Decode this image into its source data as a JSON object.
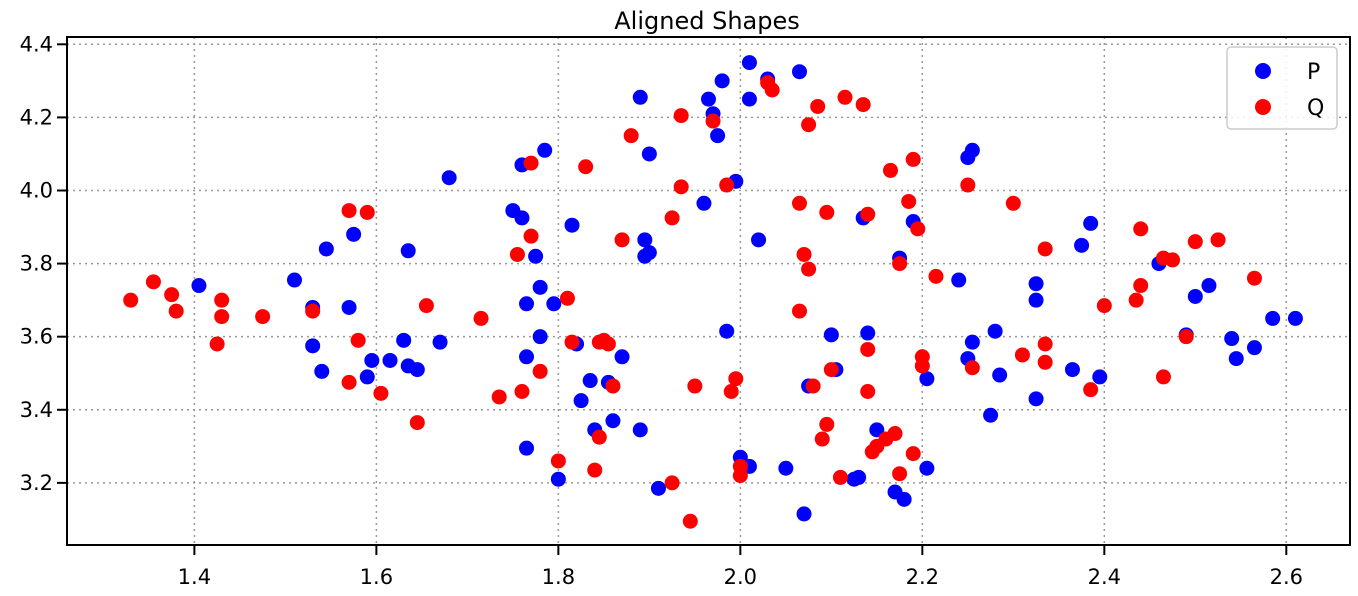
{
  "chart_data": {
    "type": "scatter",
    "title": "Aligned Shapes",
    "xlabel": "",
    "ylabel": "",
    "xlim": [
      1.26,
      2.67
    ],
    "ylim": [
      3.03,
      4.42
    ],
    "xticks": [
      "1.4",
      "1.6",
      "1.8",
      "2.0",
      "2.2",
      "2.4",
      "2.6"
    ],
    "yticks": [
      "3.2",
      "3.4",
      "3.6",
      "3.8",
      "4.0",
      "4.2",
      "4.4"
    ],
    "grid": true,
    "legend": "top-right",
    "series": [
      {
        "name": "P",
        "color": "#0000ff",
        "points": [
          [
            1.405,
            3.74
          ],
          [
            1.51,
            3.755
          ],
          [
            1.53,
            3.68
          ],
          [
            1.545,
            3.84
          ],
          [
            1.57,
            3.68
          ],
          [
            1.575,
            3.88
          ],
          [
            1.53,
            3.575
          ],
          [
            1.54,
            3.505
          ],
          [
            1.59,
            3.49
          ],
          [
            1.595,
            3.535
          ],
          [
            1.615,
            3.535
          ],
          [
            1.63,
            3.59
          ],
          [
            1.635,
            3.835
          ],
          [
            1.635,
            3.52
          ],
          [
            1.645,
            3.51
          ],
          [
            1.67,
            3.585
          ],
          [
            1.68,
            4.035
          ],
          [
            1.75,
            3.945
          ],
          [
            1.76,
            4.07
          ],
          [
            1.76,
            3.925
          ],
          [
            1.765,
            3.69
          ],
          [
            1.765,
            3.545
          ],
          [
            1.765,
            3.295
          ],
          [
            1.775,
            3.82
          ],
          [
            1.78,
            3.735
          ],
          [
            1.78,
            3.6
          ],
          [
            1.785,
            4.11
          ],
          [
            1.795,
            3.69
          ],
          [
            1.8,
            3.21
          ],
          [
            1.815,
            3.905
          ],
          [
            1.82,
            3.58
          ],
          [
            1.825,
            3.425
          ],
          [
            1.835,
            3.48
          ],
          [
            1.84,
            3.345
          ],
          [
            1.855,
            3.475
          ],
          [
            1.86,
            3.37
          ],
          [
            1.87,
            3.545
          ],
          [
            1.89,
            4.255
          ],
          [
            1.895,
            3.865
          ],
          [
            1.895,
            3.82
          ],
          [
            1.9,
            3.83
          ],
          [
            1.89,
            3.345
          ],
          [
            1.9,
            4.1
          ],
          [
            1.91,
            3.185
          ],
          [
            1.96,
            3.965
          ],
          [
            1.965,
            4.25
          ],
          [
            1.97,
            4.21
          ],
          [
            1.975,
            4.15
          ],
          [
            1.98,
            4.3
          ],
          [
            1.985,
            3.615
          ],
          [
            1.995,
            4.025
          ],
          [
            2.0,
            3.27
          ],
          [
            2.01,
            4.35
          ],
          [
            2.01,
            4.25
          ],
          [
            2.01,
            3.245
          ],
          [
            2.02,
            3.865
          ],
          [
            2.03,
            4.305
          ],
          [
            2.05,
            3.24
          ],
          [
            2.065,
            4.325
          ],
          [
            2.07,
            3.115
          ],
          [
            2.075,
            3.465
          ],
          [
            2.1,
            3.605
          ],
          [
            2.105,
            3.51
          ],
          [
            2.125,
            3.21
          ],
          [
            2.13,
            3.215
          ],
          [
            2.135,
            3.925
          ],
          [
            2.14,
            3.61
          ],
          [
            2.15,
            3.345
          ],
          [
            2.17,
            3.175
          ],
          [
            2.175,
            3.815
          ],
          [
            2.18,
            3.155
          ],
          [
            2.19,
            3.915
          ],
          [
            2.205,
            3.485
          ],
          [
            2.205,
            3.24
          ],
          [
            2.24,
            3.755
          ],
          [
            2.25,
            4.09
          ],
          [
            2.255,
            4.11
          ],
          [
            2.25,
            3.54
          ],
          [
            2.255,
            3.585
          ],
          [
            2.275,
            3.385
          ],
          [
            2.28,
            3.615
          ],
          [
            2.285,
            3.495
          ],
          [
            2.325,
            3.745
          ],
          [
            2.325,
            3.7
          ],
          [
            2.325,
            3.43
          ],
          [
            2.365,
            3.51
          ],
          [
            2.375,
            3.85
          ],
          [
            2.385,
            3.91
          ],
          [
            2.395,
            3.49
          ],
          [
            2.46,
            3.8
          ],
          [
            2.49,
            3.605
          ],
          [
            2.5,
            3.71
          ],
          [
            2.515,
            3.74
          ],
          [
            2.54,
            3.595
          ],
          [
            2.545,
            3.54
          ],
          [
            2.565,
            3.57
          ],
          [
            2.585,
            3.65
          ],
          [
            2.61,
            3.65
          ]
        ]
      },
      {
        "name": "Q",
        "color": "#ff0000",
        "points": [
          [
            1.33,
            3.7
          ],
          [
            1.355,
            3.75
          ],
          [
            1.375,
            3.715
          ],
          [
            1.38,
            3.67
          ],
          [
            1.425,
            3.58
          ],
          [
            1.43,
            3.655
          ],
          [
            1.43,
            3.7
          ],
          [
            1.475,
            3.655
          ],
          [
            1.53,
            3.67
          ],
          [
            1.57,
            3.945
          ],
          [
            1.59,
            3.94
          ],
          [
            1.57,
            3.475
          ],
          [
            1.58,
            3.59
          ],
          [
            1.605,
            3.445
          ],
          [
            1.645,
            3.365
          ],
          [
            1.655,
            3.685
          ],
          [
            1.715,
            3.65
          ],
          [
            1.735,
            3.435
          ],
          [
            1.755,
            3.825
          ],
          [
            1.76,
            3.45
          ],
          [
            1.77,
            3.875
          ],
          [
            1.77,
            4.075
          ],
          [
            1.78,
            3.505
          ],
          [
            1.8,
            3.26
          ],
          [
            1.81,
            3.705
          ],
          [
            1.815,
            3.585
          ],
          [
            1.83,
            4.065
          ],
          [
            1.84,
            3.235
          ],
          [
            1.845,
            3.585
          ],
          [
            1.845,
            3.325
          ],
          [
            1.85,
            3.59
          ],
          [
            1.855,
            3.58
          ],
          [
            1.86,
            3.465
          ],
          [
            1.87,
            3.865
          ],
          [
            1.88,
            4.15
          ],
          [
            1.925,
            3.925
          ],
          [
            1.925,
            3.2
          ],
          [
            1.935,
            4.01
          ],
          [
            1.935,
            4.205
          ],
          [
            1.945,
            3.095
          ],
          [
            1.95,
            3.465
          ],
          [
            1.97,
            4.19
          ],
          [
            1.985,
            4.015
          ],
          [
            1.99,
            3.45
          ],
          [
            1.995,
            3.485
          ],
          [
            2.0,
            3.245
          ],
          [
            2.0,
            3.22
          ],
          [
            2.03,
            4.295
          ],
          [
            2.035,
            4.275
          ],
          [
            2.065,
            3.965
          ],
          [
            2.065,
            3.67
          ],
          [
            2.07,
            3.825
          ],
          [
            2.075,
            3.785
          ],
          [
            2.075,
            4.18
          ],
          [
            2.08,
            3.465
          ],
          [
            2.085,
            4.23
          ],
          [
            2.09,
            3.32
          ],
          [
            2.095,
            3.36
          ],
          [
            2.095,
            3.94
          ],
          [
            2.1,
            3.51
          ],
          [
            2.11,
            3.215
          ],
          [
            2.115,
            4.255
          ],
          [
            2.135,
            4.235
          ],
          [
            2.14,
            3.935
          ],
          [
            2.14,
            3.565
          ],
          [
            2.14,
            3.45
          ],
          [
            2.145,
            3.285
          ],
          [
            2.15,
            3.3
          ],
          [
            2.16,
            3.32
          ],
          [
            2.165,
            4.055
          ],
          [
            2.17,
            3.335
          ],
          [
            2.175,
            3.8
          ],
          [
            2.175,
            3.225
          ],
          [
            2.185,
            3.97
          ],
          [
            2.19,
            4.085
          ],
          [
            2.19,
            3.28
          ],
          [
            2.195,
            3.895
          ],
          [
            2.2,
            3.52
          ],
          [
            2.2,
            3.545
          ],
          [
            2.215,
            3.765
          ],
          [
            2.25,
            4.015
          ],
          [
            2.255,
            3.515
          ],
          [
            2.3,
            3.965
          ],
          [
            2.31,
            3.55
          ],
          [
            2.335,
            3.58
          ],
          [
            2.335,
            3.84
          ],
          [
            2.335,
            3.53
          ],
          [
            2.385,
            3.455
          ],
          [
            2.4,
            3.685
          ],
          [
            2.435,
            3.7
          ],
          [
            2.44,
            3.895
          ],
          [
            2.44,
            3.74
          ],
          [
            2.465,
            3.815
          ],
          [
            2.465,
            3.49
          ],
          [
            2.475,
            3.81
          ],
          [
            2.49,
            3.6
          ],
          [
            2.5,
            3.86
          ],
          [
            2.525,
            3.865
          ],
          [
            2.565,
            3.76
          ]
        ]
      }
    ]
  }
}
